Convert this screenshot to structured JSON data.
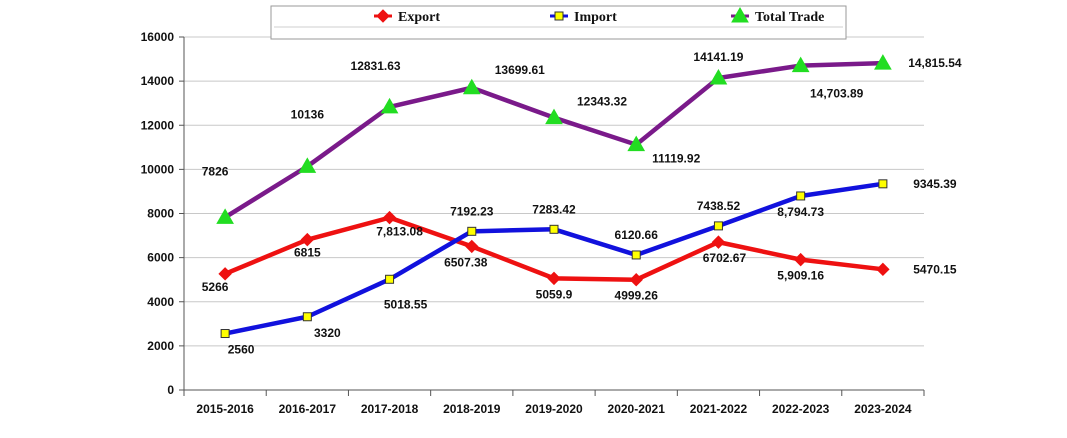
{
  "chart_data": {
    "type": "line",
    "title": "",
    "xlabel": "",
    "ylabel": "",
    "categories": [
      "2015-2016",
      "2016-2017",
      "2017-2018",
      "2018-2019",
      "2019-2020",
      "2020-2021",
      "2021-2022",
      "2022-2023",
      "2023-2024"
    ],
    "ylim": [
      0,
      16000
    ],
    "yticks": [
      "0",
      "2000",
      "4000",
      "6000",
      "8000",
      "10000",
      "12000",
      "14000",
      "16000"
    ],
    "grid": true,
    "legend_position": "top",
    "series": [
      {
        "name": "Export",
        "color": "#ee1111",
        "marker": "diamond",
        "values": [
          5266,
          6815,
          7813.08,
          6507.38,
          5059.9,
          4999.26,
          6702.67,
          5909.16,
          5470.15
        ],
        "labels": [
          "5266",
          "6815",
          "7,813.08",
          "6507.38",
          "5059.9",
          "4999.26",
          "6702.67",
          "5,909.16",
          "5470.15"
        ]
      },
      {
        "name": "Import",
        "color": "#1111dd",
        "marker": "square",
        "marker_fill": "#ffff00",
        "values": [
          2560,
          3320,
          5018.55,
          7192.23,
          7283.42,
          6120.66,
          7438.52,
          8794.73,
          9345.39
        ],
        "labels": [
          "2560",
          "3320",
          "5018.55",
          "7192.23",
          "7283.42",
          "6120.66",
          "7438.52",
          "8,794.73",
          "9345.39"
        ]
      },
      {
        "name": "Total Trade",
        "color": "#7a1a8a",
        "marker": "triangle",
        "marker_fill": "#22dd22",
        "values": [
          7826,
          10136,
          12831.63,
          13699.61,
          12343.32,
          11119.92,
          14141.19,
          14703.89,
          14815.54
        ],
        "labels": [
          "7826",
          "10136",
          "12831.63",
          "13699.61",
          "12343.32",
          "11119.92",
          "14141.19",
          "14,703.89",
          "14,815.54"
        ]
      }
    ]
  }
}
